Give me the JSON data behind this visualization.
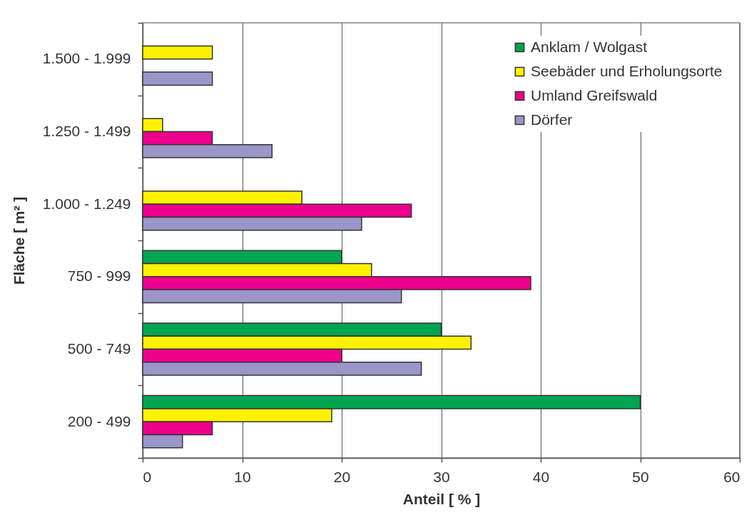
{
  "chart_data": {
    "type": "bar",
    "orientation": "horizontal",
    "xlabel": "Anteil [ % ]",
    "ylabel": "Fläche [ m² ]",
    "categories": [
      "1.500 - 1.999",
      "1.250 - 1.499",
      "1.000 - 1.249",
      "750 - 999",
      "500 - 749",
      "200 - 499"
    ],
    "series": [
      {
        "name": "Anklam / Wolgast",
        "color": "#00a551",
        "values": [
          null,
          null,
          null,
          20,
          30,
          50
        ]
      },
      {
        "name": "Seebäder und Erholungsorte",
        "color": "#fff200",
        "values": [
          7,
          2,
          16,
          23,
          33,
          19
        ]
      },
      {
        "name": "Umland Greifswald",
        "color": "#ec008c",
        "values": [
          null,
          7,
          27,
          39,
          20,
          7
        ]
      },
      {
        "name": "Dörfer",
        "color": "#9b96c8",
        "values": [
          7,
          13,
          22,
          26,
          28,
          4
        ]
      }
    ],
    "xlim": [
      0,
      60
    ],
    "xticks": [
      0,
      10,
      20,
      30,
      40,
      50,
      60
    ],
    "grid": "x",
    "legend": "top right"
  }
}
